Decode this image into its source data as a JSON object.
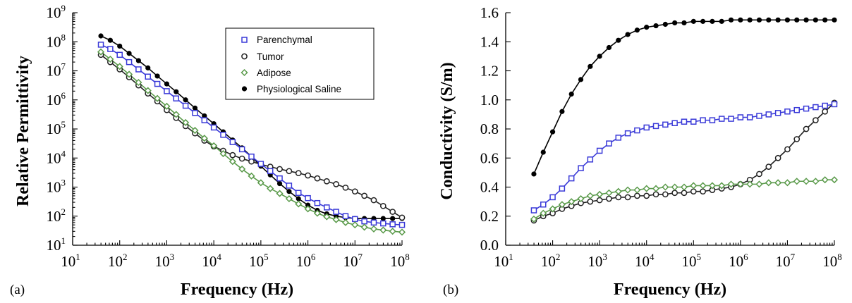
{
  "chart_data": [
    {
      "panel_label": "(a)",
      "type": "scatter",
      "xscale": "log",
      "yscale": "log",
      "xlabel": "Frequency (Hz)",
      "ylabel": "Relative Permittivity",
      "xlim": [
        10,
        100000000
      ],
      "ylim": [
        10,
        1000000000
      ],
      "xticks": [
        {
          "base": "10",
          "exp": "1"
        },
        {
          "base": "10",
          "exp": "2"
        },
        {
          "base": "10",
          "exp": "3"
        },
        {
          "base": "10",
          "exp": "4"
        },
        {
          "base": "10",
          "exp": "5"
        },
        {
          "base": "10",
          "exp": "6"
        },
        {
          "base": "10",
          "exp": "7"
        },
        {
          "base": "10",
          "exp": "8"
        }
      ],
      "yticks": [
        {
          "base": "10",
          "exp": "1"
        },
        {
          "base": "10",
          "exp": "2"
        },
        {
          "base": "10",
          "exp": "3"
        },
        {
          "base": "10",
          "exp": "4"
        },
        {
          "base": "10",
          "exp": "5"
        },
        {
          "base": "10",
          "exp": "6"
        },
        {
          "base": "10",
          "exp": "7"
        },
        {
          "base": "10",
          "exp": "8"
        },
        {
          "base": "10",
          "exp": "9"
        }
      ],
      "legend": {
        "position": "top-right-inside"
      },
      "series": [
        {
          "name": "Parenchymal",
          "marker": "open-square",
          "color": "#3a3ad8",
          "log_x": [
            1.6,
            1.8,
            2.0,
            2.2,
            2.4,
            2.6,
            2.8,
            3.0,
            3.2,
            3.4,
            3.6,
            3.8,
            4.0,
            4.2,
            4.4,
            4.6,
            4.8,
            5.0,
            5.2,
            5.4,
            5.6,
            5.8,
            6.0,
            6.2,
            6.4,
            6.6,
            6.8,
            7.0,
            7.2,
            7.4,
            7.6,
            7.8,
            8.0
          ],
          "log_y": [
            7.9,
            7.75,
            7.55,
            7.3,
            7.05,
            6.8,
            6.55,
            6.3,
            6.05,
            5.8,
            5.55,
            5.3,
            5.05,
            4.8,
            4.55,
            4.3,
            4.05,
            3.8,
            3.55,
            3.3,
            3.05,
            2.8,
            2.62,
            2.45,
            2.3,
            2.15,
            2.0,
            1.9,
            1.82,
            1.78,
            1.75,
            1.72,
            1.7
          ]
        },
        {
          "name": "Tumor",
          "marker": "open-circle",
          "color": "#222222",
          "log_x": [
            1.6,
            1.8,
            2.0,
            2.2,
            2.4,
            2.6,
            2.8,
            3.0,
            3.2,
            3.4,
            3.6,
            3.8,
            4.0,
            4.2,
            4.4,
            4.6,
            4.8,
            5.0,
            5.2,
            5.4,
            5.6,
            5.8,
            6.0,
            6.2,
            6.4,
            6.6,
            6.8,
            7.0,
            7.2,
            7.4,
            7.6,
            7.8,
            8.0
          ],
          "log_y": [
            7.55,
            7.3,
            7.05,
            6.78,
            6.5,
            6.22,
            5.95,
            5.65,
            5.38,
            5.1,
            4.85,
            4.6,
            4.4,
            4.25,
            4.1,
            3.98,
            3.88,
            3.78,
            3.7,
            3.62,
            3.55,
            3.48,
            3.4,
            3.3,
            3.2,
            3.1,
            2.98,
            2.85,
            2.7,
            2.55,
            2.35,
            2.15,
            1.95
          ]
        },
        {
          "name": "Adipose",
          "marker": "open-diamond",
          "color": "#5a9a4a",
          "log_x": [
            1.6,
            1.8,
            2.0,
            2.2,
            2.4,
            2.6,
            2.8,
            3.0,
            3.2,
            3.4,
            3.6,
            3.8,
            4.0,
            4.2,
            4.4,
            4.6,
            4.8,
            5.0,
            5.2,
            5.4,
            5.6,
            5.8,
            6.0,
            6.2,
            6.4,
            6.6,
            6.8,
            7.0,
            7.2,
            7.4,
            7.6,
            7.8,
            8.0
          ],
          "log_y": [
            7.65,
            7.4,
            7.15,
            6.88,
            6.6,
            6.32,
            6.05,
            5.78,
            5.5,
            5.22,
            4.95,
            4.68,
            4.42,
            4.15,
            3.88,
            3.62,
            3.38,
            3.15,
            2.95,
            2.78,
            2.6,
            2.42,
            2.25,
            2.1,
            1.98,
            1.88,
            1.78,
            1.7,
            1.62,
            1.56,
            1.52,
            1.48,
            1.45
          ]
        },
        {
          "name": "Physiological Saline",
          "marker": "filled-circle",
          "color": "#000000",
          "log_x": [
            1.6,
            1.8,
            2.0,
            2.2,
            2.4,
            2.6,
            2.8,
            3.0,
            3.2,
            3.4,
            3.6,
            3.8,
            4.0,
            4.2,
            4.4,
            4.6,
            4.8,
            5.0,
            5.2,
            5.4,
            5.6,
            5.8,
            6.0,
            6.2,
            6.4,
            6.6,
            6.8,
            7.0,
            7.2,
            7.4,
            7.6,
            7.8,
            8.0
          ],
          "log_y": [
            8.2,
            8.05,
            7.85,
            7.6,
            7.35,
            7.1,
            6.82,
            6.55,
            6.28,
            6.0,
            5.72,
            5.45,
            5.18,
            4.9,
            4.62,
            4.35,
            4.05,
            3.72,
            3.42,
            3.12,
            2.85,
            2.6,
            2.38,
            2.2,
            2.08,
            2.0,
            1.95,
            1.92,
            1.92,
            1.92,
            1.92,
            1.92,
            1.92
          ]
        }
      ]
    },
    {
      "panel_label": "(b)",
      "type": "scatter",
      "xscale": "log",
      "yscale": "linear",
      "xlabel": "Frequency (Hz)",
      "ylabel": "Conductivity (S/m)",
      "xlim": [
        10,
        100000000
      ],
      "ylim": [
        0.0,
        1.6
      ],
      "xticks": [
        {
          "base": "10",
          "exp": "1"
        },
        {
          "base": "10",
          "exp": "2"
        },
        {
          "base": "10",
          "exp": "3"
        },
        {
          "base": "10",
          "exp": "4"
        },
        {
          "base": "10",
          "exp": "5"
        },
        {
          "base": "10",
          "exp": "6"
        },
        {
          "base": "10",
          "exp": "7"
        },
        {
          "base": "10",
          "exp": "8"
        }
      ],
      "yticks": [
        "0.0",
        "0.2",
        "0.4",
        "0.6",
        "0.8",
        "1.0",
        "1.2",
        "1.4",
        "1.6"
      ],
      "series": [
        {
          "name": "Parenchymal",
          "marker": "open-square",
          "color": "#3a3ad8",
          "log_x": [
            1.6,
            1.8,
            2.0,
            2.2,
            2.4,
            2.6,
            2.8,
            3.0,
            3.2,
            3.4,
            3.6,
            3.8,
            4.0,
            4.2,
            4.4,
            4.6,
            4.8,
            5.0,
            5.2,
            5.4,
            5.6,
            5.8,
            6.0,
            6.2,
            6.4,
            6.6,
            6.8,
            7.0,
            7.2,
            7.4,
            7.6,
            7.8,
            8.0
          ],
          "y": [
            0.24,
            0.28,
            0.33,
            0.39,
            0.46,
            0.53,
            0.59,
            0.65,
            0.7,
            0.74,
            0.77,
            0.79,
            0.81,
            0.82,
            0.83,
            0.84,
            0.85,
            0.85,
            0.86,
            0.86,
            0.87,
            0.87,
            0.88,
            0.88,
            0.89,
            0.9,
            0.91,
            0.92,
            0.93,
            0.94,
            0.95,
            0.96,
            0.97
          ]
        },
        {
          "name": "Tumor",
          "marker": "open-circle",
          "color": "#222222",
          "log_x": [
            1.6,
            1.8,
            2.0,
            2.2,
            2.4,
            2.6,
            2.8,
            3.0,
            3.2,
            3.4,
            3.6,
            3.8,
            4.0,
            4.2,
            4.4,
            4.6,
            4.8,
            5.0,
            5.2,
            5.4,
            5.6,
            5.8,
            6.0,
            6.2,
            6.4,
            6.6,
            6.8,
            7.0,
            7.2,
            7.4,
            7.6,
            7.8,
            8.0
          ],
          "y": [
            0.17,
            0.2,
            0.22,
            0.25,
            0.27,
            0.29,
            0.3,
            0.31,
            0.32,
            0.33,
            0.33,
            0.34,
            0.34,
            0.35,
            0.35,
            0.36,
            0.36,
            0.37,
            0.37,
            0.38,
            0.39,
            0.4,
            0.42,
            0.45,
            0.49,
            0.54,
            0.6,
            0.66,
            0.73,
            0.8,
            0.86,
            0.92,
            0.98
          ]
        },
        {
          "name": "Adipose",
          "marker": "open-diamond",
          "color": "#5a9a4a",
          "log_x": [
            1.6,
            1.8,
            2.0,
            2.2,
            2.4,
            2.6,
            2.8,
            3.0,
            3.2,
            3.4,
            3.6,
            3.8,
            4.0,
            4.2,
            4.4,
            4.6,
            4.8,
            5.0,
            5.2,
            5.4,
            5.6,
            5.8,
            6.0,
            6.2,
            6.4,
            6.6,
            6.8,
            7.0,
            7.2,
            7.4,
            7.6,
            7.8,
            8.0
          ],
          "y": [
            0.18,
            0.22,
            0.25,
            0.28,
            0.3,
            0.32,
            0.34,
            0.35,
            0.36,
            0.37,
            0.38,
            0.38,
            0.39,
            0.39,
            0.4,
            0.4,
            0.4,
            0.41,
            0.41,
            0.41,
            0.41,
            0.42,
            0.42,
            0.42,
            0.42,
            0.43,
            0.43,
            0.43,
            0.44,
            0.44,
            0.44,
            0.45,
            0.45
          ]
        },
        {
          "name": "Physiological Saline",
          "marker": "filled-circle",
          "color": "#000000",
          "log_x": [
            1.6,
            1.8,
            2.0,
            2.2,
            2.4,
            2.6,
            2.8,
            3.0,
            3.2,
            3.4,
            3.6,
            3.8,
            4.0,
            4.2,
            4.4,
            4.6,
            4.8,
            5.0,
            5.2,
            5.4,
            5.6,
            5.8,
            6.0,
            6.2,
            6.4,
            6.6,
            6.8,
            7.0,
            7.2,
            7.4,
            7.6,
            7.8,
            8.0
          ],
          "y": [
            0.49,
            0.64,
            0.78,
            0.92,
            1.04,
            1.14,
            1.23,
            1.3,
            1.36,
            1.41,
            1.45,
            1.48,
            1.5,
            1.51,
            1.52,
            1.53,
            1.53,
            1.54,
            1.54,
            1.54,
            1.54,
            1.55,
            1.55,
            1.55,
            1.55,
            1.55,
            1.55,
            1.55,
            1.55,
            1.55,
            1.55,
            1.55,
            1.55
          ]
        }
      ]
    }
  ]
}
